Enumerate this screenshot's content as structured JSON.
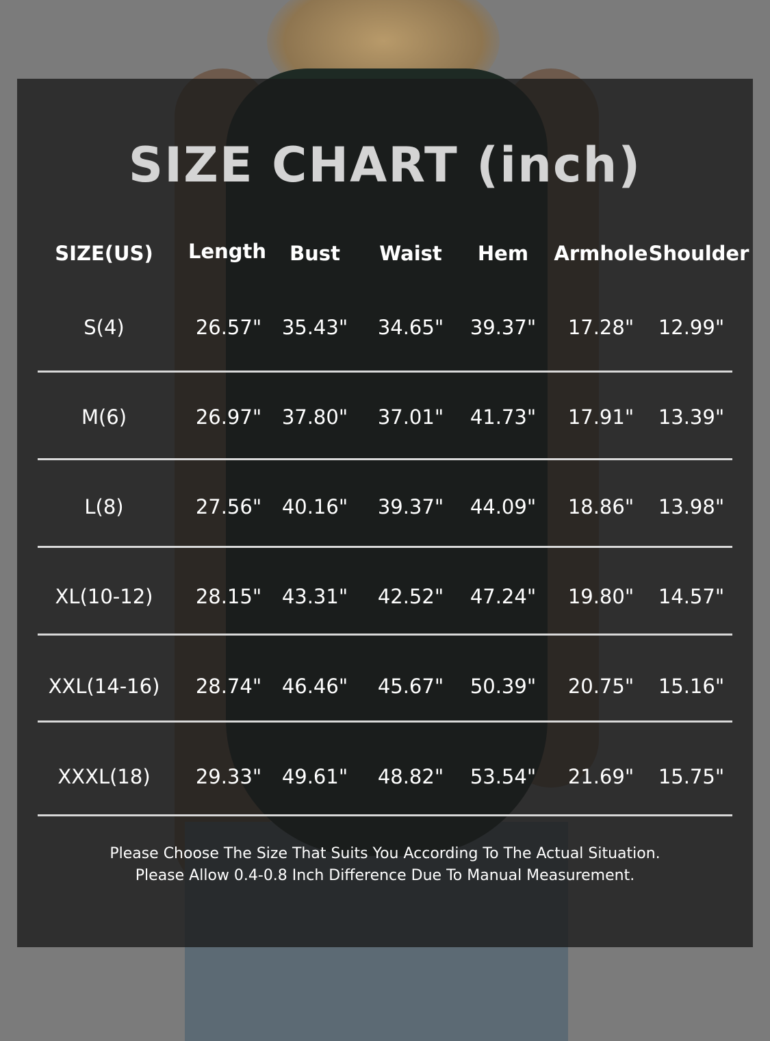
{
  "title": "SIZE CHART (inch)",
  "headers": [
    "SIZE(US)",
    "Length",
    "Bust",
    "Waist",
    "Hem",
    "Armhole",
    "Shoulder"
  ],
  "rows": [
    [
      "S(4)",
      "26.57\"",
      "35.43\"",
      "34.65\"",
      "39.37\"",
      "17.28\"",
      "12.99\""
    ],
    [
      "M(6)",
      "26.97\"",
      "37.80\"",
      "37.01\"",
      "41.73\"",
      "17.91\"",
      "13.39\""
    ],
    [
      "L(8)",
      "27.56\"",
      "40.16\"",
      "39.37\"",
      "44.09\"",
      "18.86\"",
      "13.98\""
    ],
    [
      "XL(10-12)",
      "28.15\"",
      "43.31\"",
      "42.52\"",
      "47.24\"",
      "19.80\"",
      "14.57\""
    ],
    [
      "XXL(14-16)",
      "28.74\"",
      "46.46\"",
      "45.67\"",
      "50.39\"",
      "20.75\"",
      "15.16\""
    ],
    [
      "XXXL(18)",
      "29.33\"",
      "49.61\"",
      "48.82\"",
      "53.54\"",
      "21.69\"",
      "15.75\""
    ]
  ],
  "notes": [
    "Please Choose The Size That Suits You According To The Actual Situation.",
    "Please Allow 0.4-0.8 Inch Difference Due To Manual Measurement."
  ],
  "colors": {
    "panel": "#1a1a1a",
    "title": "#d4d4d4",
    "text": "#ffffff",
    "divider": "#d9d9d9"
  }
}
